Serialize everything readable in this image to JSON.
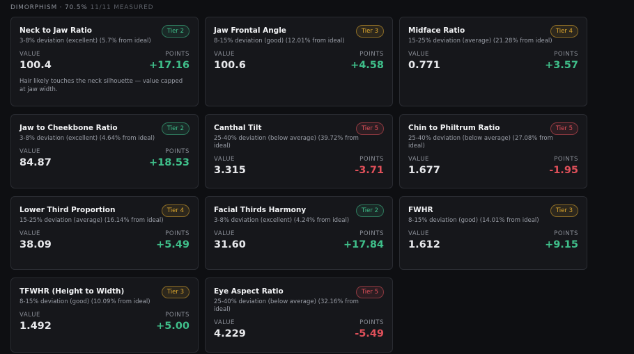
{
  "header": {
    "title": "DIMORPHISM · 70.5%",
    "measured": "11/11 MEASURED"
  },
  "labels": {
    "value": "VALUE",
    "points": "POINTS"
  },
  "cards": [
    {
      "name": "Neck to Jaw Ratio",
      "tier": "Tier 2",
      "tier_color": "#3fbf8a",
      "desc": "3-8% deviation (excellent) (5.7% from ideal)",
      "value": "100.4",
      "points": "+17.16",
      "note": "Hair likely touches the neck silhouette — value capped at jaw width."
    },
    {
      "name": "Jaw Frontal Angle",
      "tier": "Tier 3",
      "tier_color": "#e0a92e",
      "desc": "8-15% deviation (good) (12.01% from ideal)",
      "value": "100.6",
      "points": "+4.58"
    },
    {
      "name": "Midface Ratio",
      "tier": "Tier 4",
      "tier_color": "#e0a92e",
      "desc": "15-25% deviation (average) (21.28% from ideal)",
      "value": "0.771",
      "points": "+3.57"
    },
    {
      "name": "Jaw to Cheekbone Ratio",
      "tier": "Tier 2",
      "tier_color": "#3fbf8a",
      "desc": "3-8% deviation (excellent) (4.64% from ideal)",
      "value": "84.87",
      "points": "+18.53"
    },
    {
      "name": "Canthal Tilt",
      "tier": "Tier 5",
      "tier_color": "#e0505a",
      "desc": "25-40% deviation (below average) (39.72% from ideal)",
      "value": "3.315",
      "points": "-3.71"
    },
    {
      "name": "Chin to Philtrum Ratio",
      "tier": "Tier 5",
      "tier_color": "#e0505a",
      "desc": "25-40% deviation (below average) (27.08% from ideal)",
      "value": "1.677",
      "points": "-1.95"
    },
    {
      "name": "Lower Third Proportion",
      "tier": "Tier 4",
      "tier_color": "#e0a92e",
      "desc": "15-25% deviation (average) (16.14% from ideal)",
      "value": "38.09",
      "points": "+5.49"
    },
    {
      "name": "Facial Thirds Harmony",
      "tier": "Tier 2",
      "tier_color": "#3fbf8a",
      "desc": "3-8% deviation (excellent) (4.24% from ideal)",
      "value": "31.60",
      "points": "+17.84"
    },
    {
      "name": "FWHR",
      "tier": "Tier 3",
      "tier_color": "#e0a92e",
      "desc": "8-15% deviation (good) (14.01% from ideal)",
      "value": "1.612",
      "points": "+9.15"
    },
    {
      "name": "TFWHR (Height to Width)",
      "tier": "Tier 3",
      "tier_color": "#e0a92e",
      "desc": "8-15% deviation (good) (10.09% from ideal)",
      "value": "1.492",
      "points": "+5.00"
    },
    {
      "name": "Eye Aspect Ratio",
      "tier": "Tier 5",
      "tier_color": "#e0505a",
      "desc": "25-40% deviation (below average) (32.16% from ideal)",
      "value": "4.229",
      "points": "-5.49"
    }
  ]
}
